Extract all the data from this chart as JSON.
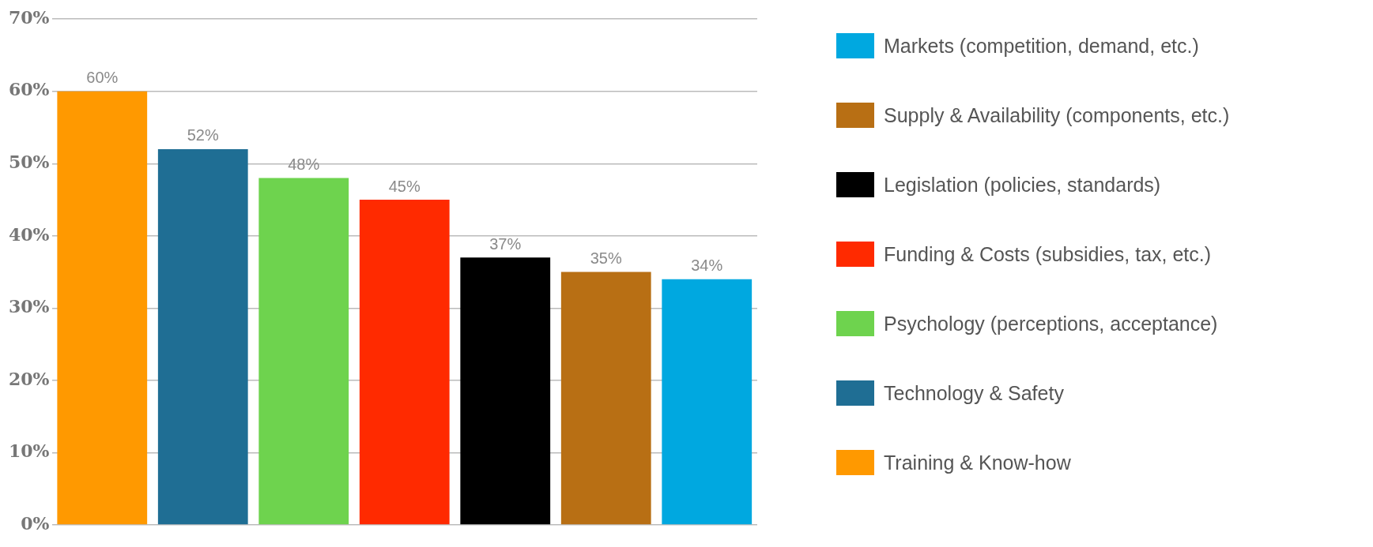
{
  "chart_data": {
    "type": "bar",
    "categories": [
      null,
      null,
      null,
      null,
      null,
      null,
      null
    ],
    "series": [
      {
        "name": "Markets (competition, demand, etc.)",
        "color": "#00a8e0",
        "values": [
          null,
          null,
          null,
          null,
          null,
          null,
          34
        ],
        "value_labels": [
          null,
          null,
          null,
          null,
          null,
          null,
          "34%"
        ]
      },
      {
        "name": "Supply & Availability (components, etc.)",
        "color": "#b86f14",
        "values": [
          null,
          null,
          null,
          null,
          null,
          35,
          null
        ],
        "value_labels": [
          null,
          null,
          null,
          null,
          null,
          "35%",
          null
        ]
      },
      {
        "name": "Legislation (policies, standards)",
        "color": "#000000",
        "values": [
          null,
          null,
          null,
          null,
          37,
          null,
          null
        ],
        "value_labels": [
          null,
          null,
          null,
          null,
          "37%",
          null,
          null
        ]
      },
      {
        "name": "Funding & Costs (subsidies, tax, etc.)",
        "color": "#ff2a00",
        "values": [
          null,
          null,
          null,
          45,
          null,
          null,
          null
        ],
        "value_labels": [
          null,
          null,
          null,
          "45%",
          null,
          null,
          null
        ]
      },
      {
        "name": "Psychology (perceptions, acceptance)",
        "color": "#6ed34e",
        "values": [
          null,
          null,
          48,
          null,
          null,
          null,
          null
        ],
        "value_labels": [
          null,
          null,
          "48%",
          null,
          null,
          null,
          null
        ]
      },
      {
        "name": "Technology & Safety",
        "color": "#1f6e94",
        "values": [
          null,
          52,
          null,
          null,
          null,
          null,
          null
        ],
        "value_labels": [
          null,
          "52%",
          null,
          null,
          null,
          null,
          null
        ]
      },
      {
        "name": "Training & Know-how",
        "color": "#ff9900",
        "values": [
          60,
          null,
          null,
          null,
          null,
          null,
          null
        ],
        "value_labels": [
          "60%",
          null,
          null,
          null,
          null,
          null,
          null
        ]
      }
    ],
    "ylim": [
      0,
      70
    ],
    "yticks": [
      {
        "value": 0,
        "label": "0%"
      },
      {
        "value": 10,
        "label": "10%"
      },
      {
        "value": 20,
        "label": "20%"
      },
      {
        "value": 30,
        "label": "30%"
      },
      {
        "value": 40,
        "label": "40%"
      },
      {
        "value": 50,
        "label": "50%"
      },
      {
        "value": 60,
        "label": "60%"
      },
      {
        "value": 70,
        "label": "70%"
      }
    ],
    "grid": "y",
    "legend": "right",
    "tick_labels": "y"
  }
}
